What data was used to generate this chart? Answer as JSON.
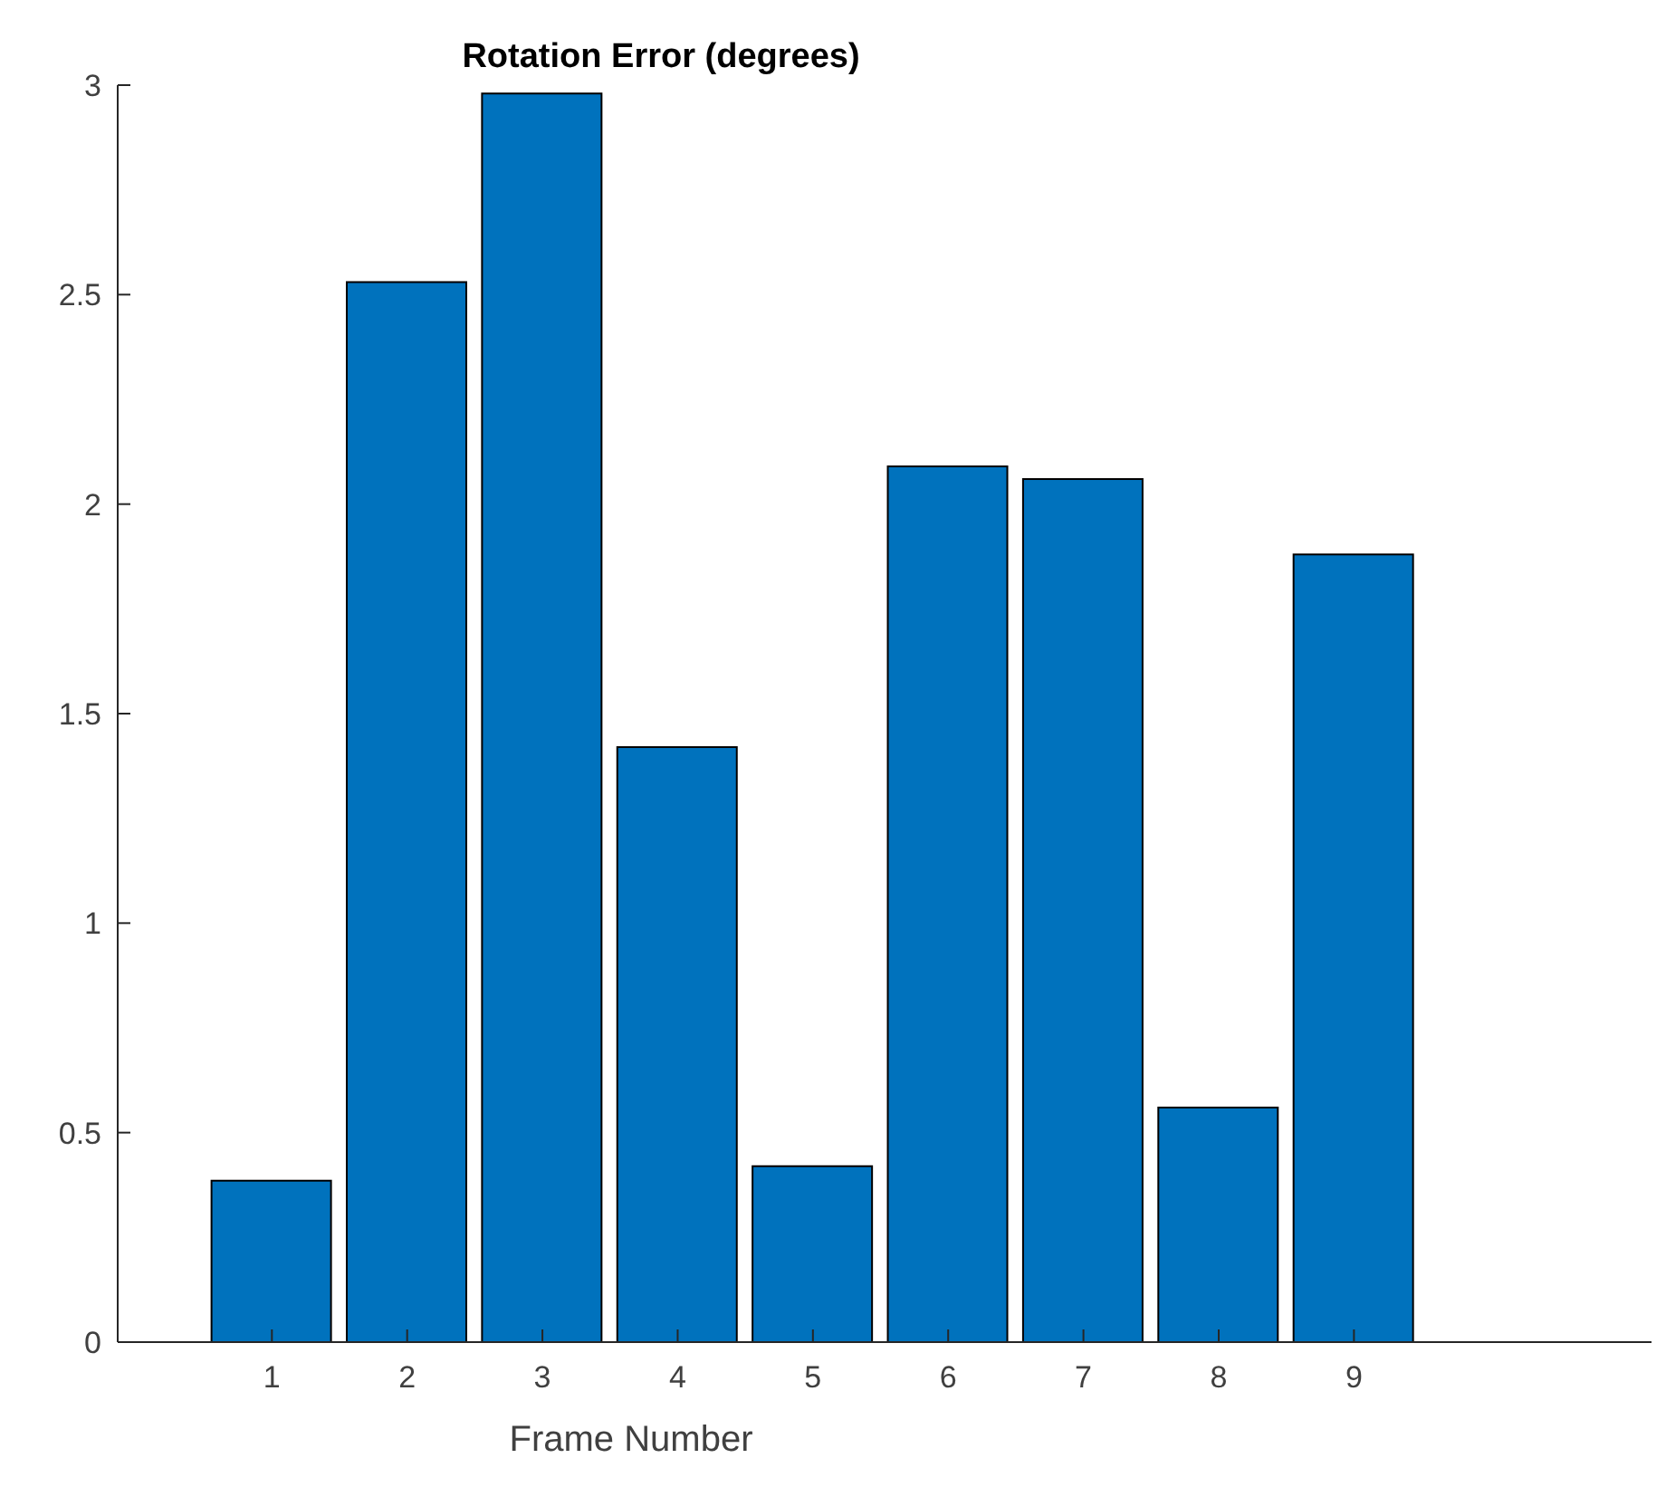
{
  "chart_data": {
    "type": "bar",
    "title": "Rotation Error (degrees)",
    "xlabel": "Frame Number",
    "categories": [
      "1",
      "2",
      "3",
      "4",
      "5",
      "6",
      "7",
      "8",
      "9"
    ],
    "values": [
      0.385,
      2.53,
      2.98,
      1.42,
      0.42,
      2.09,
      2.06,
      0.56,
      1.88
    ],
    "color": "#0072bd",
    "ylim": [
      0,
      3
    ],
    "yticks": [
      0,
      0.5,
      1,
      1.5,
      2,
      2.5,
      3
    ],
    "grid": false,
    "legend": false
  }
}
